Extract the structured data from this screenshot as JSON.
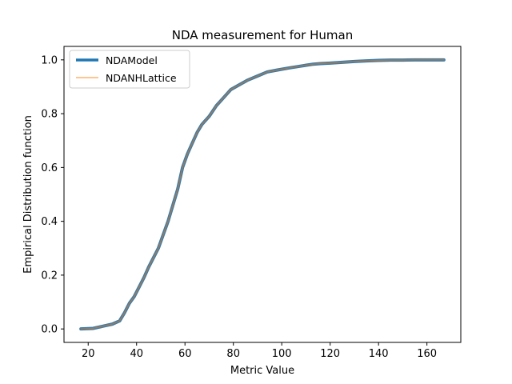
{
  "chart_data": {
    "type": "line",
    "title": "NDA measurement for Human",
    "xlabel": "Metric Value",
    "ylabel": "Empirical Distribution function",
    "xlim": [
      10,
      174
    ],
    "ylim": [
      -0.05,
      1.05
    ],
    "xticks": [
      20,
      40,
      60,
      80,
      100,
      120,
      140,
      160
    ],
    "yticks": [
      0.0,
      0.2,
      0.4,
      0.6,
      0.8,
      1.0
    ],
    "xtick_labels": [
      "20",
      "40",
      "60",
      "80",
      "100",
      "120",
      "140",
      "160"
    ],
    "ytick_labels": [
      "0.0",
      "0.2",
      "0.4",
      "0.6",
      "0.8",
      "1.0"
    ],
    "grid": false,
    "legend_position": "upper-left",
    "series": [
      {
        "name": "NDAModel",
        "color": "#1f77b4",
        "x": [
          17,
          22,
          26,
          30,
          33,
          35,
          37,
          39,
          41,
          43,
          45,
          47,
          49,
          51,
          53,
          55,
          57,
          59,
          61,
          63,
          65,
          67,
          70,
          73,
          76,
          79,
          82,
          86,
          90,
          94,
          98,
          103,
          108,
          113,
          116,
          120,
          125,
          130,
          135,
          140,
          145,
          150,
          155,
          160,
          167
        ],
        "y": [
          0.0,
          0.002,
          0.01,
          0.018,
          0.03,
          0.06,
          0.095,
          0.12,
          0.155,
          0.19,
          0.23,
          0.265,
          0.3,
          0.35,
          0.4,
          0.46,
          0.52,
          0.6,
          0.65,
          0.69,
          0.73,
          0.76,
          0.79,
          0.83,
          0.86,
          0.89,
          0.905,
          0.925,
          0.94,
          0.955,
          0.962,
          0.97,
          0.977,
          0.984,
          0.986,
          0.988,
          0.991,
          0.994,
          0.996,
          0.998,
          0.999,
          0.999,
          1.0,
          1.0,
          1.0
        ]
      },
      {
        "name": "NDANHLattice",
        "color": "#ff7f0e",
        "x": [
          17,
          22,
          26,
          30,
          33,
          35,
          37,
          39,
          41,
          43,
          45,
          47,
          49,
          51,
          53,
          55,
          57,
          59,
          61,
          63,
          65,
          67,
          70,
          73,
          76,
          79,
          82,
          86,
          90,
          94,
          98,
          103,
          108,
          113,
          116,
          120,
          125,
          130,
          135,
          140,
          145,
          150,
          155,
          160,
          167
        ],
        "y": [
          0.0,
          0.002,
          0.01,
          0.018,
          0.03,
          0.06,
          0.095,
          0.12,
          0.155,
          0.19,
          0.23,
          0.265,
          0.3,
          0.35,
          0.4,
          0.46,
          0.52,
          0.6,
          0.65,
          0.69,
          0.73,
          0.76,
          0.79,
          0.83,
          0.86,
          0.89,
          0.905,
          0.925,
          0.94,
          0.955,
          0.962,
          0.97,
          0.977,
          0.984,
          0.986,
          0.988,
          0.991,
          0.994,
          0.996,
          0.998,
          0.999,
          0.999,
          1.0,
          1.0,
          1.0
        ]
      }
    ]
  }
}
